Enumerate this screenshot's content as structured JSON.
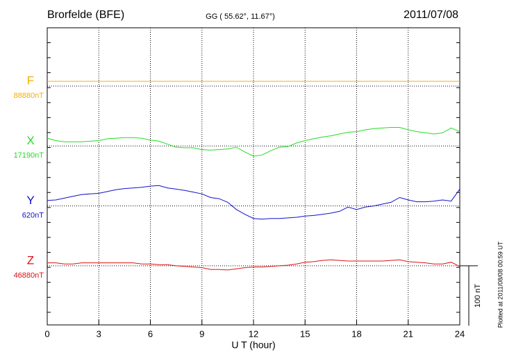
{
  "chart_data": {
    "type": "line",
    "title": "Brorfelde (BFE)",
    "subtitle": "GG ( 55.62°,  11.67°)",
    "date": "2011/07/08",
    "x_label": "U T (hour)",
    "plotted_note": "Plotted at 2011/08/08 00:59 UT",
    "scale_bar": {
      "value": 100,
      "label": "100 nT"
    },
    "xlim": [
      0,
      24
    ],
    "xticks": [
      0,
      3,
      6,
      9,
      12,
      15,
      18,
      21,
      24
    ],
    "grid": true,
    "x": [
      0,
      0.5,
      1,
      1.5,
      2,
      2.5,
      3,
      3.5,
      4,
      4.5,
      5,
      5.5,
      6,
      6.5,
      7,
      7.5,
      8,
      8.5,
      9,
      9.5,
      10,
      10.5,
      11,
      11.5,
      12,
      12.5,
      13,
      13.5,
      14,
      14.5,
      15,
      15.5,
      16,
      16.5,
      17,
      17.5,
      18,
      18.5,
      19,
      19.5,
      20,
      20.5,
      21,
      21.5,
      22,
      22.5,
      23,
      23.5,
      24
    ],
    "series": [
      {
        "name": "F",
        "color": "#f0b000",
        "baseline": {
          "value": 88880,
          "label": "88880nT"
        },
        "values": [
          88888,
          88888,
          88888,
          88888,
          88888,
          88888,
          88888,
          88888,
          88888,
          88888,
          88888,
          88888,
          88888,
          88888,
          88888,
          88888,
          88888,
          88888,
          88888,
          88888,
          88888,
          88888,
          88888,
          88888,
          88888,
          88888,
          88888,
          88888,
          88888,
          88888,
          88888,
          88888,
          88888,
          88888,
          88888,
          88888,
          88888,
          88888,
          88888,
          88888,
          88888,
          88888,
          88888,
          88888,
          88888,
          88888,
          88888,
          88888,
          88888
        ]
      },
      {
        "name": "X",
        "color": "#22dd22",
        "baseline": {
          "value": 17190,
          "label": "17190nT"
        },
        "values": [
          17203,
          17199,
          17197,
          17197,
          17197,
          17198,
          17199,
          17202,
          17203,
          17204,
          17204,
          17203,
          17200,
          17198,
          17193,
          17188,
          17187,
          17187,
          17184,
          17183,
          17184,
          17185,
          17188,
          17180,
          17173,
          17175,
          17182,
          17188,
          17189,
          17195,
          17199,
          17202,
          17205,
          17207,
          17210,
          17213,
          17214,
          17217,
          17219,
          17220,
          17221,
          17221,
          17217,
          17214,
          17212,
          17210,
          17212,
          17220,
          17214
        ]
      },
      {
        "name": "Y",
        "color": "#1010cc",
        "baseline": {
          "value": 620,
          "label": "620nT"
        },
        "values": [
          629,
          630,
          633,
          636,
          639,
          640,
          641,
          644,
          647,
          649,
          650,
          651,
          653,
          654,
          650,
          648,
          646,
          643,
          640,
          634,
          632,
          626,
          614,
          606,
          599,
          598,
          599,
          599,
          600,
          601,
          603,
          604,
          606,
          608,
          611,
          618,
          614,
          618,
          620,
          623,
          626,
          634,
          630,
          627,
          627,
          628,
          630,
          628,
          648
        ]
      },
      {
        "name": "Z",
        "color": "#dd1111",
        "baseline": {
          "value": 46880,
          "label": "46880nT"
        },
        "values": [
          46885,
          46885,
          46883,
          46883,
          46885,
          46885,
          46885,
          46885,
          46885,
          46885,
          46885,
          46883,
          46883,
          46882,
          46882,
          46880,
          46879,
          46878,
          46877,
          46874,
          46874,
          46873,
          46875,
          46877,
          46878,
          46878,
          46879,
          46880,
          46881,
          46883,
          46886,
          46887,
          46889,
          46890,
          46889,
          46888,
          46888,
          46888,
          46888,
          46888,
          46889,
          46890,
          46887,
          46886,
          46885,
          46883,
          46883,
          46886,
          46879
        ]
      }
    ]
  }
}
